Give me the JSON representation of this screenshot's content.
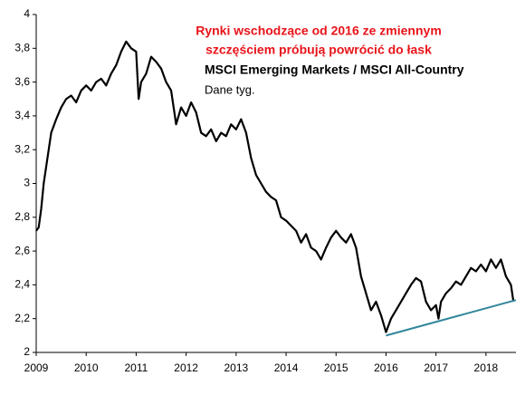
{
  "chart_data": {
    "type": "line",
    "title": [
      "Rynki wschodzące od 2016 ze zmiennym",
      "szczęściem próbują powrócić do łask"
    ],
    "subtitle": "MSCI Emerging Markets / MSCI All-Country",
    "note": "Dane tyg.",
    "xlim": [
      2009,
      2018.6
    ],
    "xticks": [
      2009,
      2010,
      2011,
      2012,
      2013,
      2014,
      2015,
      2016,
      2017,
      2018
    ],
    "ylim": [
      2,
      4
    ],
    "yticks": [
      2,
      {
        "value": 2.2,
        "label": "2,2"
      },
      {
        "value": 2.4,
        "label": "2,4"
      },
      {
        "value": 2.6,
        "label": "2,6"
      },
      {
        "value": 2.8,
        "label": "2,8"
      },
      3,
      {
        "value": 3.2,
        "label": "3,2"
      },
      {
        "value": 3.4,
        "label": "3,4"
      },
      {
        "value": 3.6,
        "label": "3,6"
      },
      {
        "value": 3.8,
        "label": "3,8"
      },
      4
    ],
    "series": [
      {
        "color": "#000000",
        "x": [
          2009.0,
          2009.05,
          2009.1,
          2009.15,
          2009.2,
          2009.3,
          2009.4,
          2009.5,
          2009.6,
          2009.7,
          2009.8,
          2009.9,
          2010.0,
          2010.1,
          2010.2,
          2010.3,
          2010.4,
          2010.5,
          2010.6,
          2010.7,
          2010.8,
          2010.9,
          2011.0,
          2011.05,
          2011.1,
          2011.2,
          2011.3,
          2011.4,
          2011.5,
          2011.6,
          2011.7,
          2011.8,
          2011.9,
          2012.0,
          2012.1,
          2012.2,
          2012.3,
          2012.4,
          2012.5,
          2012.6,
          2012.7,
          2012.8,
          2012.9,
          2013.0,
          2013.1,
          2013.2,
          2013.3,
          2013.4,
          2013.5,
          2013.6,
          2013.7,
          2013.8,
          2013.9,
          2014.0,
          2014.1,
          2014.2,
          2014.3,
          2014.4,
          2014.5,
          2014.6,
          2014.7,
          2014.8,
          2014.9,
          2015.0,
          2015.1,
          2015.2,
          2015.3,
          2015.4,
          2015.5,
          2015.6,
          2015.7,
          2015.8,
          2015.9,
          2016.0,
          2016.1,
          2016.2,
          2016.3,
          2016.4,
          2016.5,
          2016.6,
          2016.7,
          2016.8,
          2016.9,
          2017.0,
          2017.05,
          2017.1,
          2017.2,
          2017.3,
          2017.4,
          2017.5,
          2017.6,
          2017.7,
          2017.8,
          2017.9,
          2018.0,
          2018.1,
          2018.2,
          2018.3,
          2018.4,
          2018.5,
          2018.55
        ],
        "values": [
          2.72,
          2.74,
          2.85,
          3.0,
          3.1,
          3.3,
          3.38,
          3.45,
          3.5,
          3.52,
          3.48,
          3.55,
          3.58,
          3.55,
          3.6,
          3.62,
          3.58,
          3.65,
          3.7,
          3.78,
          3.84,
          3.8,
          3.78,
          3.5,
          3.6,
          3.65,
          3.75,
          3.72,
          3.68,
          3.6,
          3.55,
          3.35,
          3.45,
          3.4,
          3.48,
          3.42,
          3.3,
          3.28,
          3.32,
          3.25,
          3.3,
          3.28,
          3.35,
          3.32,
          3.38,
          3.3,
          3.15,
          3.05,
          3.0,
          2.95,
          2.92,
          2.9,
          2.8,
          2.78,
          2.75,
          2.72,
          2.65,
          2.7,
          2.62,
          2.6,
          2.55,
          2.62,
          2.68,
          2.72,
          2.68,
          2.65,
          2.7,
          2.62,
          2.45,
          2.35,
          2.25,
          2.3,
          2.22,
          2.12,
          2.2,
          2.25,
          2.3,
          2.35,
          2.4,
          2.44,
          2.42,
          2.3,
          2.25,
          2.28,
          2.2,
          2.3,
          2.35,
          2.38,
          2.42,
          2.4,
          2.45,
          2.5,
          2.48,
          2.52,
          2.48,
          2.55,
          2.5,
          2.55,
          2.45,
          2.4,
          2.3
        ]
      },
      {
        "color": "#31869b",
        "x": [
          2016.0,
          2018.6
        ],
        "values": [
          2.1,
          2.31
        ]
      }
    ]
  }
}
